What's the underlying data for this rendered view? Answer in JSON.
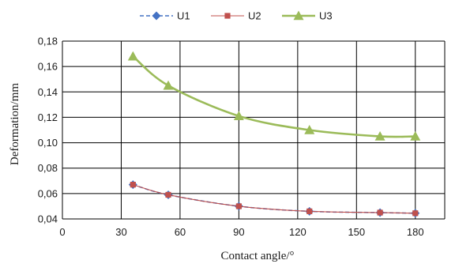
{
  "chart_data": {
    "type": "line",
    "title": "",
    "xlabel": "Contact angle/°",
    "ylabel": "Deformation/mm",
    "xlim": [
      0,
      195
    ],
    "ylim": [
      0.04,
      0.18
    ],
    "xticks": [
      0,
      30,
      60,
      90,
      120,
      150,
      180
    ],
    "yticks": [
      0.04,
      0.06,
      0.08,
      0.1,
      0.12,
      0.14,
      0.16,
      0.18
    ],
    "xtick_labels": [
      "0",
      "30",
      "60",
      "90",
      "120",
      "150",
      "180"
    ],
    "ytick_labels": [
      "0,04",
      "0,06",
      "0,08",
      "0,10",
      "0,12",
      "0,14",
      "0,16",
      "0,18"
    ],
    "grid": true,
    "legend_position": "top-center",
    "series": [
      {
        "name": "U1",
        "color": "#4472C4",
        "marker": "diamond",
        "line_style": "dashed",
        "x": [
          36,
          54,
          90,
          126,
          162,
          180
        ],
        "y": [
          0.067,
          0.059,
          0.05,
          0.046,
          0.045,
          0.0445
        ]
      },
      {
        "name": "U2",
        "color": "#C0504D",
        "marker": "square",
        "line_style": "solid",
        "x": [
          36,
          54,
          90,
          126,
          162,
          180
        ],
        "y": [
          0.067,
          0.059,
          0.05,
          0.046,
          0.045,
          0.0445
        ]
      },
      {
        "name": "U3",
        "color": "#9BBB59",
        "marker": "triangle",
        "line_style": "solid",
        "x": [
          36,
          54,
          90,
          126,
          162,
          180
        ],
        "y": [
          0.168,
          0.145,
          0.121,
          0.11,
          0.105,
          0.105
        ]
      }
    ]
  }
}
